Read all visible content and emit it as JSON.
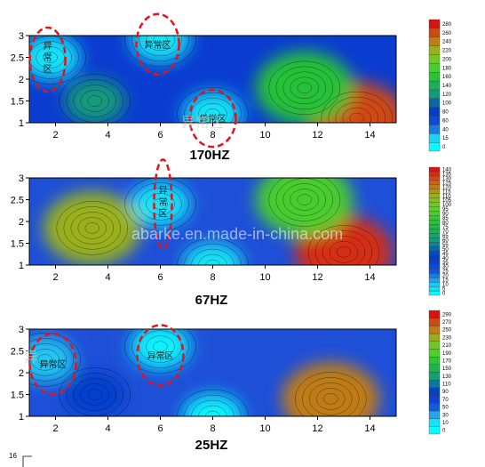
{
  "chart_data": [
    {
      "type": "heatmap",
      "title": "170HZ",
      "x_ticks": [
        2,
        4,
        6,
        8,
        10,
        12,
        14
      ],
      "y_ticks": [
        1,
        1.5,
        2,
        2.5,
        3
      ],
      "xlim": [
        1,
        15
      ],
      "ylim": [
        1,
        3
      ],
      "colorbar_ticks": [
        0,
        15,
        40,
        60,
        80,
        100,
        120,
        140,
        160,
        180,
        200,
        220,
        240,
        260,
        280
      ],
      "annotations": [
        {
          "label": "异常区",
          "x": 1.7,
          "y": 2.45,
          "orientation": "vertical"
        },
        {
          "label": "异常区",
          "x": 5.9,
          "y": 2.8,
          "orientation": "horizontal"
        },
        {
          "label": "异常区",
          "x": 8.0,
          "y": 1.1,
          "orientation": "horizontal"
        }
      ],
      "features": [
        {
          "x": 1.8,
          "y": 2.5,
          "value": 10
        },
        {
          "x": 6.0,
          "y": 2.9,
          "value": 10
        },
        {
          "x": 8.0,
          "y": 1.2,
          "value": 10
        },
        {
          "x": 3.5,
          "y": 1.5,
          "value": 120
        },
        {
          "x": 13.5,
          "y": 1.1,
          "value": 260
        },
        {
          "x": 11.5,
          "y": 1.8,
          "value": 160
        }
      ]
    },
    {
      "type": "heatmap",
      "title": "67HZ",
      "x_ticks": [
        2,
        4,
        6,
        8,
        10,
        12,
        14
      ],
      "y_ticks": [
        1,
        1.5,
        2,
        2.5,
        3
      ],
      "xlim": [
        1,
        15
      ],
      "ylim": [
        1,
        3
      ],
      "colorbar_ticks": [
        0,
        5,
        10,
        15,
        20,
        25,
        30,
        35,
        40,
        45,
        50,
        55,
        60,
        65,
        70,
        75,
        80,
        85,
        90,
        95,
        100,
        105,
        110,
        115,
        120,
        125,
        130,
        135,
        140
      ],
      "annotations": [
        {
          "label": "异常区",
          "x": 6.1,
          "y": 2.4,
          "orientation": "vertical"
        }
      ],
      "features": [
        {
          "x": 6.0,
          "y": 2.4,
          "value": 5
        },
        {
          "x": 3.4,
          "y": 1.85,
          "value": 110
        },
        {
          "x": 13.0,
          "y": 1.3,
          "value": 135
        },
        {
          "x": 11.5,
          "y": 2.5,
          "value": 90
        },
        {
          "x": 8.0,
          "y": 1.0,
          "value": 5
        }
      ]
    },
    {
      "type": "heatmap",
      "title": "25HZ",
      "x_ticks": [
        2,
        4,
        6,
        8,
        10,
        12,
        14
      ],
      "y_ticks": [
        1,
        1.5,
        2,
        2.5,
        3
      ],
      "xlim": [
        1,
        15
      ],
      "ylim": [
        1,
        3
      ],
      "colorbar_ticks": [
        0,
        10,
        30,
        50,
        70,
        90,
        110,
        130,
        150,
        170,
        190,
        210,
        230,
        250,
        270,
        290
      ],
      "annotations": [
        {
          "label": "异常区",
          "x": 1.9,
          "y": 2.2,
          "orientation": "horizontal"
        },
        {
          "label": "异常区",
          "x": 6.0,
          "y": 2.4,
          "orientation": "horizontal"
        }
      ],
      "features": [
        {
          "x": 6.0,
          "y": 2.6,
          "value": 5
        },
        {
          "x": 1.6,
          "y": 2.3,
          "value": 20
        },
        {
          "x": 8.0,
          "y": 1.0,
          "value": 5
        },
        {
          "x": 12.5,
          "y": 1.4,
          "value": 250
        },
        {
          "x": 3.5,
          "y": 1.5,
          "value": 80
        }
      ]
    }
  ],
  "watermark": "abarke.en.made-in-china.com",
  "page_number": "16"
}
